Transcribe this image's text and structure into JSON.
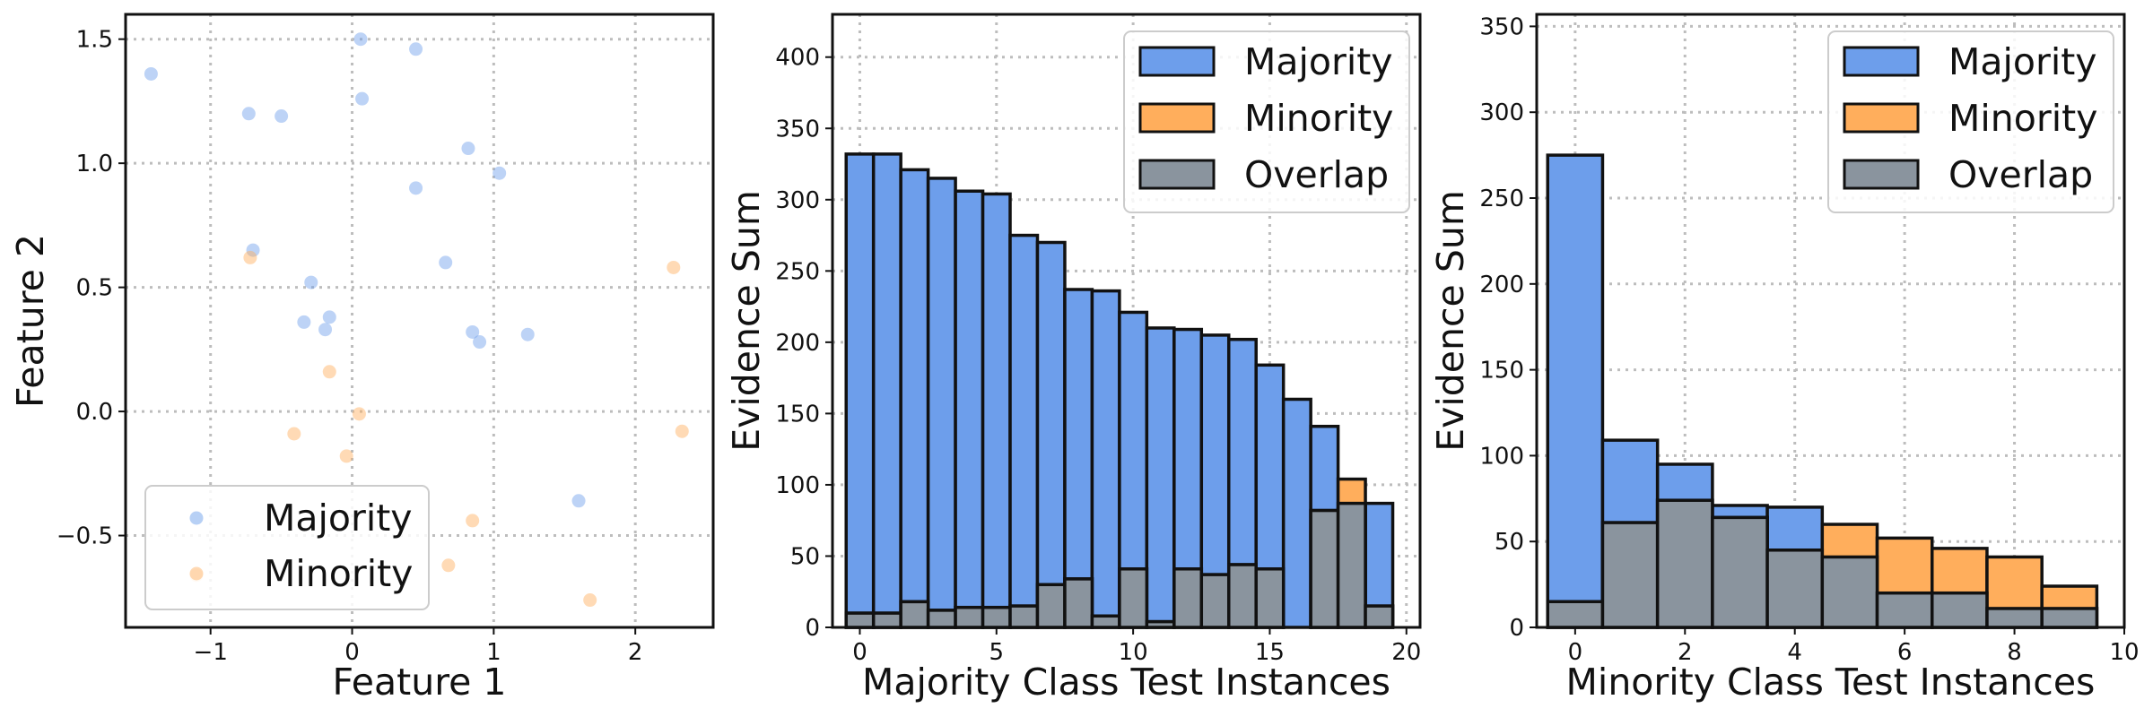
{
  "colors": {
    "majority": "#6d9eeb",
    "minority": "#ffae5c",
    "overlap": "#8a949e",
    "grid": "#bdbdbd",
    "edge": "#111111"
  },
  "chart_data": [
    {
      "type": "scatter",
      "xlabel": "Feature 1",
      "ylabel": "Feature 2",
      "xlim": [
        -1.6,
        2.55
      ],
      "ylim": [
        -0.87,
        1.6
      ],
      "xticks": [
        -1,
        0,
        1,
        2
      ],
      "yticks": [
        -0.5,
        0.0,
        0.5,
        1.0,
        1.5
      ],
      "ytick_labels": [
        "−0.5",
        "0.0",
        "0.5",
        "1.0",
        "1.5"
      ],
      "xtick_labels": [
        "−1",
        "0",
        "1",
        "2"
      ],
      "grid": true,
      "legend": {
        "placement": "lower-left",
        "entries": [
          "Majority",
          "Minority"
        ]
      },
      "series": [
        {
          "name": "Majority",
          "color_key": "majority",
          "points": [
            [
              -1.42,
              1.36
            ],
            [
              0.06,
              1.5
            ],
            [
              0.45,
              1.46
            ],
            [
              -0.73,
              1.2
            ],
            [
              -0.5,
              1.19
            ],
            [
              0.07,
              1.26
            ],
            [
              0.82,
              1.06
            ],
            [
              1.04,
              0.96
            ],
            [
              0.45,
              0.9
            ],
            [
              -0.7,
              0.65
            ],
            [
              0.66,
              0.6
            ],
            [
              -0.29,
              0.52
            ],
            [
              -0.34,
              0.36
            ],
            [
              -0.16,
              0.38
            ],
            [
              -0.19,
              0.33
            ],
            [
              0.85,
              0.32
            ],
            [
              0.9,
              0.28
            ],
            [
              1.24,
              0.31
            ],
            [
              1.6,
              -0.36
            ],
            [
              -1.1,
              -0.43
            ]
          ]
        },
        {
          "name": "Minority",
          "color_key": "minority",
          "points": [
            [
              -0.72,
              0.62
            ],
            [
              2.27,
              0.58
            ],
            [
              -0.16,
              0.16
            ],
            [
              0.05,
              -0.01
            ],
            [
              -0.41,
              -0.09
            ],
            [
              2.33,
              -0.08
            ],
            [
              -0.04,
              -0.18
            ],
            [
              0.85,
              -0.44
            ],
            [
              0.68,
              -0.62
            ],
            [
              1.68,
              -0.76
            ],
            [
              -1.1,
              -0.66
            ]
          ]
        }
      ]
    },
    {
      "type": "bar",
      "xlabel": "Majority Class Test Instances",
      "ylabel": "Evidence Sum",
      "xlim": [
        -1.0,
        20.5
      ],
      "ylim": [
        0,
        430
      ],
      "xticks": [
        0,
        5,
        10,
        15,
        20
      ],
      "yticks": [
        0,
        50,
        100,
        150,
        200,
        250,
        300,
        350,
        400
      ],
      "grid": true,
      "legend": {
        "placement": "top-right",
        "entries": [
          "Majority",
          "Minority",
          "Overlap"
        ]
      },
      "categories": [
        0,
        1,
        2,
        3,
        4,
        5,
        6,
        7,
        8,
        9,
        10,
        11,
        12,
        13,
        14,
        15,
        16,
        17,
        18,
        19
      ],
      "series": [
        {
          "name": "Majority",
          "color_key": "majority",
          "values": [
            332,
            332,
            321,
            315,
            306,
            304,
            275,
            270,
            237,
            236,
            221,
            210,
            209,
            205,
            202,
            184,
            160,
            141,
            83,
            87
          ]
        },
        {
          "name": "Minority",
          "color_key": "minority",
          "values": [
            10,
            10,
            18,
            12,
            14,
            14,
            15,
            30,
            34,
            8,
            41,
            4,
            41,
            37,
            44,
            41,
            0,
            82,
            104,
            15
          ]
        },
        {
          "name": "Overlap",
          "color_key": "overlap",
          "values": [
            10,
            10,
            18,
            12,
            14,
            14,
            15,
            30,
            34,
            8,
            41,
            4,
            41,
            37,
            44,
            41,
            0,
            82,
            87,
            15
          ]
        }
      ]
    },
    {
      "type": "bar",
      "xlabel": "Minority Class Test Instances",
      "ylabel": "Evidence Sum",
      "xlim": [
        -0.7,
        10.0
      ],
      "ylim": [
        0,
        357
      ],
      "xticks": [
        0,
        2,
        4,
        6,
        8,
        10
      ],
      "yticks": [
        0,
        50,
        100,
        150,
        200,
        250,
        300,
        350
      ],
      "grid": true,
      "legend": {
        "placement": "top-right",
        "entries": [
          "Majority",
          "Minority",
          "Overlap"
        ]
      },
      "categories": [
        0,
        1,
        2,
        3,
        4,
        5,
        6,
        7,
        8,
        9
      ],
      "series": [
        {
          "name": "Majority",
          "color_key": "majority",
          "values": [
            275,
            109,
            95,
            71,
            70,
            41,
            20,
            20,
            11,
            11
          ]
        },
        {
          "name": "Minority",
          "color_key": "minority",
          "values": [
            15,
            61,
            74,
            64,
            45,
            60,
            52,
            46,
            41,
            24
          ]
        },
        {
          "name": "Overlap",
          "color_key": "overlap",
          "values": [
            15,
            61,
            74,
            64,
            45,
            41,
            20,
            20,
            11,
            11
          ]
        }
      ]
    }
  ]
}
